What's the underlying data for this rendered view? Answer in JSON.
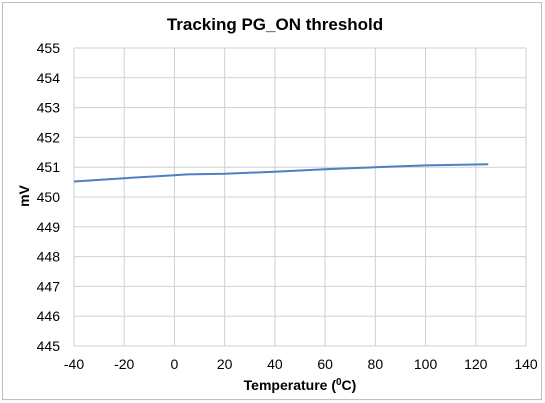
{
  "chart_data": {
    "type": "line",
    "title": "Tracking PG_ON  threshold",
    "xlabel_main": "Temperature (",
    "xlabel_sup": "0",
    "xlabel_tail": "C)",
    "ylabel": "mV",
    "xlim": [
      -40,
      140
    ],
    "ylim": [
      445,
      455
    ],
    "x_ticks": [
      -40,
      -20,
      0,
      20,
      40,
      60,
      80,
      100,
      120,
      140
    ],
    "y_ticks": [
      445,
      446,
      447,
      448,
      449,
      450,
      451,
      452,
      453,
      454,
      455
    ],
    "grid": true,
    "series": [
      {
        "x": [
          -40,
          -20,
          0,
          5,
          20,
          40,
          60,
          80,
          100,
          125
        ],
        "y": [
          450.52,
          450.63,
          450.73,
          450.76,
          450.78,
          450.85,
          450.93,
          451.0,
          451.06,
          451.1
        ],
        "color": "#4f7fbf"
      }
    ]
  }
}
